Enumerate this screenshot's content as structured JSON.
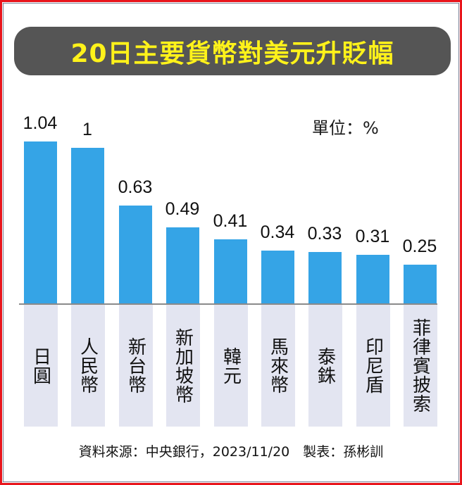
{
  "title": "20日主要貨幣對美元升貶幅",
  "unit_label": "單位：%",
  "footer": "資料來源：中央銀行，2023/11/20　製表：孫彬訓",
  "colors": {
    "bar": "#35a4e6",
    "title_bg": "#555555",
    "title_text": "#fff21a",
    "label_bg": "#e3e5f1",
    "frame": "#e8141b"
  },
  "chart_data": {
    "type": "bar",
    "title": "20日主要貨幣對美元升貶幅",
    "xlabel": "",
    "ylabel": "單位：%",
    "categories": [
      "日圓",
      "人民幣",
      "新台幣",
      "新加坡幣",
      "韓元",
      "馬來幣",
      "泰銖",
      "印尼盾",
      "菲律賓披索"
    ],
    "values": [
      1.04,
      1,
      0.63,
      0.49,
      0.41,
      0.34,
      0.33,
      0.31,
      0.25
    ],
    "value_labels": [
      "1.04",
      "1",
      "0.63",
      "0.49",
      "0.41",
      "0.34",
      "0.33",
      "0.31",
      "0.25"
    ],
    "ylim": [
      0,
      1.04
    ],
    "grid": false,
    "legend": null,
    "source": "中央銀行，2023/11/20"
  }
}
